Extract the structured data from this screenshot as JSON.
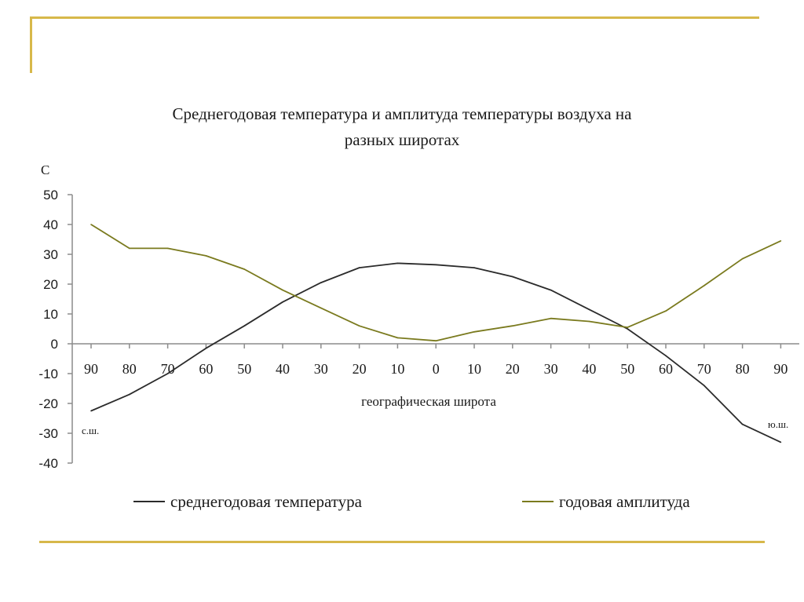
{
  "colors": {
    "frame": "#d7b84a",
    "temperature": "#2b2b2b",
    "amplitude": "#7a7a1e",
    "axis": "#8c8c8c"
  },
  "chart_data": {
    "type": "line",
    "title_line1": "Среднегодовая температура и амплитуда температуры воздуха на",
    "title_line2": "разных широтах",
    "ylabel": "С",
    "xlabel": "географическая широта",
    "north_label": "с.ш.",
    "south_label": "ю.ш.",
    "ylim": [
      -40,
      50
    ],
    "yticks": [
      50,
      40,
      30,
      20,
      10,
      0,
      -10,
      -20,
      -30,
      -40
    ],
    "categories": [
      "90",
      "80",
      "70",
      "60",
      "50",
      "40",
      "30",
      "20",
      "10",
      "0",
      "10",
      "20",
      "30",
      "40",
      "50",
      "60",
      "70",
      "80",
      "90"
    ],
    "legend_position": "bottom",
    "series": [
      {
        "name": "среднегодовая температура",
        "values": [
          -22.5,
          -17,
          -10,
          -1.5,
          6,
          14,
          20.5,
          25.5,
          27,
          26.5,
          25.5,
          22.5,
          18,
          11.5,
          5,
          -4,
          -14,
          -27,
          -33
        ]
      },
      {
        "name": "годовая амплитуда",
        "values": [
          40,
          32,
          32,
          29.5,
          25,
          18,
          12,
          6,
          2,
          1,
          4,
          6,
          8.5,
          7.5,
          5.5,
          11,
          19.5,
          28.5,
          34.5
        ]
      }
    ]
  }
}
